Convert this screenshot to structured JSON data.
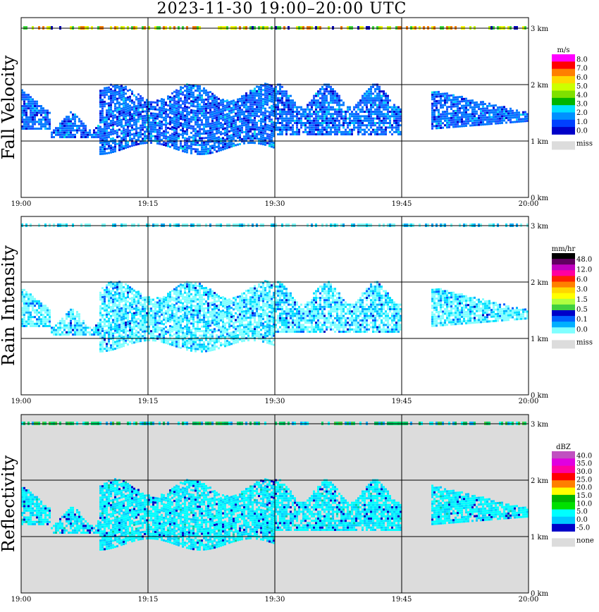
{
  "title": "2023-11-30   19:00–20:00 UTC",
  "chart_data": [
    {
      "type": "heatmap",
      "ylabel": "Fall Velocity",
      "x_ticks": [
        "19:00",
        "19:15",
        "19:30",
        "19:45",
        "20:00"
      ],
      "y_ticks": [
        "0 km",
        "1 km",
        "2 km",
        "3 km"
      ],
      "xlim": [
        "19:00",
        "20:00"
      ],
      "ylim_km": [
        0,
        3.2
      ],
      "background": "#ffffff",
      "grid": true,
      "colorbar": {
        "unit": "m/s",
        "labels": [
          "8.0",
          "7.0",
          "6.0",
          "5.0",
          "4.0",
          "3.0",
          "2.0",
          "1.0",
          "0.0"
        ],
        "colors": [
          "#ff00ff",
          "#ff0000",
          "#ff7f00",
          "#ffd700",
          "#ccff00",
          "#7fe000",
          "#00b400",
          "#00e0ff",
          "#0090ff",
          "#0040ff",
          "#0000c8"
        ],
        "missing_label": "miss",
        "missing_color": "#dcdcdc"
      },
      "echo": {
        "band_colors": [
          "#0078ff",
          "#1a50ff",
          "#0000d0",
          "#00c8ff",
          "#00e0e0"
        ],
        "top_layer_colors": [
          "#ffff00",
          "#c8ff00",
          "#40e040",
          "#0000c0",
          "#ff8000"
        ]
      }
    },
    {
      "type": "heatmap",
      "ylabel": "Rain Intensity",
      "x_ticks": [
        "19:00",
        "19:15",
        "19:30",
        "19:45",
        "20:00"
      ],
      "y_ticks": [
        "0 km",
        "1 km",
        "2 km",
        "3 km"
      ],
      "xlim": [
        "19:00",
        "20:00"
      ],
      "ylim_km": [
        0,
        3.2
      ],
      "background": "#ffffff",
      "grid": true,
      "colorbar": {
        "unit": "mm/hr",
        "labels": [
          "48.0",
          "12.0",
          "6.0",
          "3.0",
          "1.5",
          "0.5",
          "0.1",
          "0.0"
        ],
        "colors": [
          "#000000",
          "#600060",
          "#c000c0",
          "#ff00a0",
          "#ff2000",
          "#ff8000",
          "#ffd700",
          "#ffff00",
          "#b0ff40",
          "#40d040",
          "#0000c8",
          "#0060ff",
          "#00b0ff",
          "#80ffff"
        ],
        "missing_label": "miss",
        "missing_color": "#dcdcdc"
      },
      "echo": {
        "band_colors": [
          "#80ffff",
          "#00e0ff",
          "#00b0ff",
          "#0060ff",
          "#0000c0"
        ],
        "top_layer_colors": [
          "#80ffff",
          "#00e0ff",
          "#80ffff",
          "#00b0ff",
          "#80ffff"
        ]
      }
    },
    {
      "type": "heatmap",
      "ylabel": "Reflectivity",
      "x_ticks": [
        "19:00",
        "19:15",
        "19:30",
        "19:45",
        "20:00"
      ],
      "y_ticks": [
        "0 km",
        "1 km",
        "2 km",
        "3 km"
      ],
      "xlim": [
        "19:00",
        "20:00"
      ],
      "ylim_km": [
        0,
        3.2
      ],
      "background": "#dcdcdc",
      "grid": true,
      "colorbar": {
        "unit": "dBZ",
        "labels": [
          "40.0",
          "35.0",
          "30.0",
          "25.0",
          "20.0",
          "15.0",
          "10.0",
          "5.0",
          "0.0",
          "-5.0"
        ],
        "colors": [
          "#c050c0",
          "#e000e0",
          "#ff00a0",
          "#ff0000",
          "#ff7f00",
          "#ffff00",
          "#00b400",
          "#00e000",
          "#00ffff",
          "#00c8ff",
          "#0000c8"
        ],
        "missing_label": "none",
        "missing_color": "#dcdcdc"
      },
      "echo": {
        "band_colors": [
          "#00ffff",
          "#00e0ff",
          "#00c8ff",
          "#0000c8",
          "#00d0a0"
        ],
        "top_layer_colors": [
          "#00e070",
          "#00c864",
          "#00ffff",
          "#40d040",
          "#00b0ff"
        ]
      }
    }
  ]
}
